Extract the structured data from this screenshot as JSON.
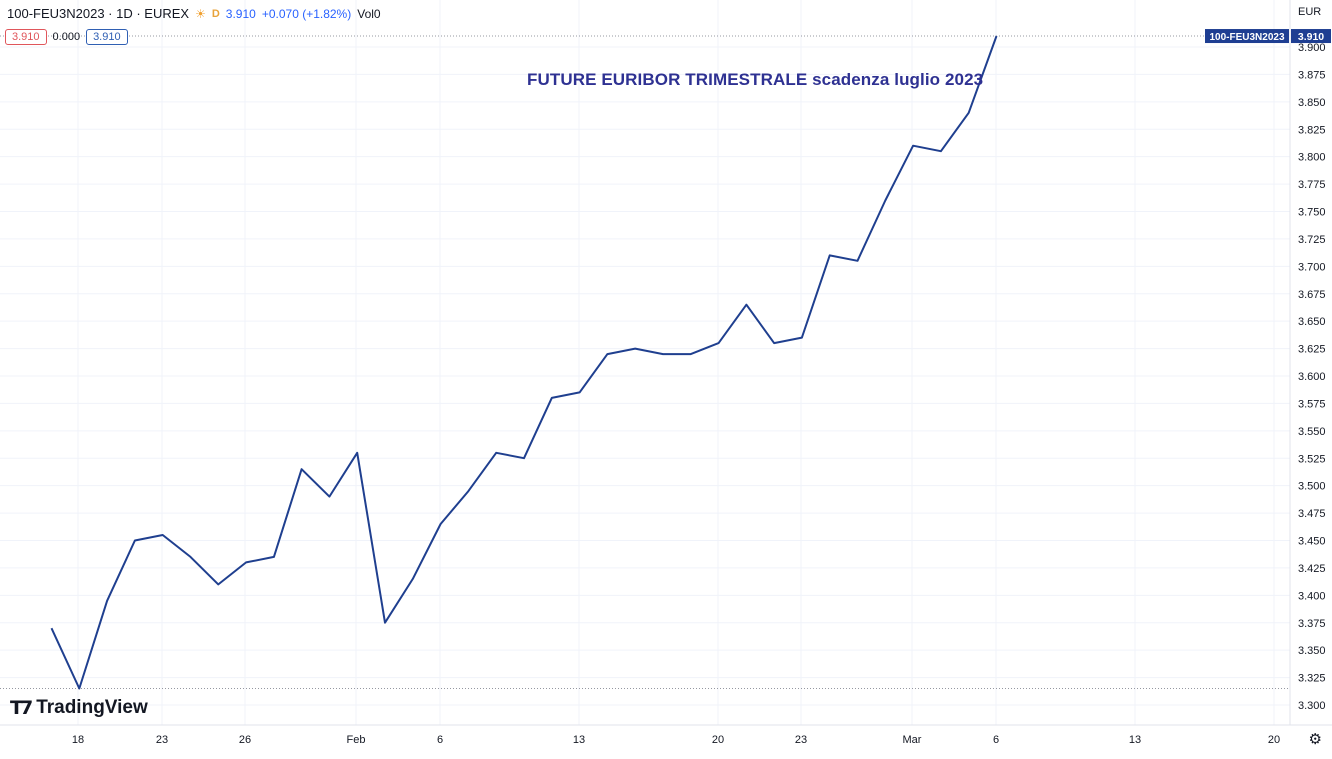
{
  "header": {
    "symbol": "100-FEU3N2023 · 1D · EUREX",
    "interval_badge": "D",
    "last": "3.910",
    "change": "+0.070 (+1.82%)",
    "volume_label": "Vol0",
    "bid": "3.910",
    "spread": "0.000",
    "ask": "3.910"
  },
  "annotation": "FUTURE EURIBOR TRIMESTRALE scadenza luglio 2023",
  "logo_text": "TradingView",
  "price_tag": {
    "symbol": "100-FEU3N2023",
    "value": "3.910"
  },
  "colors": {
    "line": "#1f3f8f",
    "tag": "#1e3e92",
    "annotation": "#2e3192",
    "grid": "#f0f3fa"
  },
  "chart_data": {
    "type": "line",
    "ylabel": "EUR",
    "ylim": [
      3.3,
      3.91
    ],
    "ytick_labels": [
      "3.300",
      "3.325",
      "3.350",
      "3.375",
      "3.400",
      "3.425",
      "3.450",
      "3.475",
      "3.500",
      "3.525",
      "3.550",
      "3.575",
      "3.600",
      "3.625",
      "3.650",
      "3.675",
      "3.700",
      "3.725",
      "3.750",
      "3.775",
      "3.800",
      "3.825",
      "3.850",
      "3.875",
      "3.900"
    ],
    "xtick_labels": [
      "18",
      "23",
      "26",
      "Feb",
      "6",
      "13",
      "20",
      "23",
      "Mar",
      "6",
      "13",
      "20"
    ],
    "x": [
      "Jan 17",
      "Jan 18",
      "Jan 19",
      "Jan 20",
      "Jan 23",
      "Jan 24",
      "Jan 25",
      "Jan 26",
      "Jan 27",
      "Jan 30",
      "Jan 31",
      "Feb 1",
      "Feb 2",
      "Feb 3",
      "Feb 6",
      "Feb 7",
      "Feb 8",
      "Feb 9",
      "Feb 10",
      "Feb 13",
      "Feb 14",
      "Feb 15",
      "Feb 16",
      "Feb 17",
      "Feb 20",
      "Feb 21",
      "Feb 22",
      "Feb 23",
      "Feb 24",
      "Feb 27",
      "Feb 28",
      "Mar 1",
      "Mar 2",
      "Mar 3",
      "Mar 6"
    ],
    "series": [
      {
        "values": [
          3.37,
          3.315,
          3.395,
          3.45,
          3.455,
          3.435,
          3.41,
          3.43,
          3.435,
          3.515,
          3.49,
          3.53,
          3.375,
          3.415,
          3.465,
          3.495,
          3.53,
          3.525,
          3.58,
          3.585,
          3.62,
          3.625,
          3.62,
          3.62,
          3.63,
          3.665,
          3.63,
          3.635,
          3.71,
          3.705,
          3.76,
          3.81,
          3.805,
          3.84,
          3.91
        ]
      }
    ]
  }
}
